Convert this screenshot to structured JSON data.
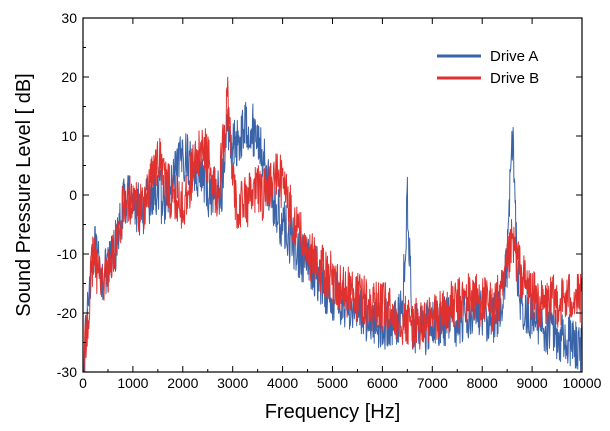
{
  "chart_data": {
    "type": "line",
    "title": "",
    "xlabel": "Frequency [Hz]",
    "ylabel": "Sound Pressure Level [ dB]",
    "xlim": [
      0,
      10000
    ],
    "ylim": [
      -30,
      30
    ],
    "x_ticks": [
      0,
      1000,
      2000,
      3000,
      4000,
      5000,
      6000,
      7000,
      8000,
      9000,
      10000
    ],
    "x_tick_labels": [
      "0",
      "1000",
      "2000",
      "3000",
      "4000",
      "5000",
      "6000",
      "7000",
      "8000",
      "9000",
      "10000"
    ],
    "y_ticks": [
      -30,
      -20,
      -10,
      0,
      10,
      20,
      30
    ],
    "y_tick_labels": [
      "-30",
      "-20",
      "-10",
      "0",
      "10",
      "20",
      "30"
    ],
    "grid": false,
    "legend_position": "top-right",
    "series": [
      {
        "name": "Drive A",
        "color": "#3a63a8",
        "x": [
          20,
          100,
          200,
          300,
          400,
          500,
          600,
          700,
          800,
          900,
          1000,
          1100,
          1200,
          1300,
          1400,
          1500,
          1600,
          1700,
          1800,
          1900,
          2000,
          2100,
          2200,
          2300,
          2400,
          2500,
          2600,
          2700,
          2800,
          2900,
          3000,
          3100,
          3200,
          3300,
          3400,
          3500,
          3600,
          3700,
          3800,
          3900,
          4000,
          4200,
          4400,
          4600,
          4800,
          5000,
          5200,
          5400,
          5600,
          5800,
          6000,
          6200,
          6400,
          6500,
          6600,
          6800,
          7000,
          7200,
          7400,
          7600,
          7800,
          8000,
          8200,
          8400,
          8500,
          8600,
          8650,
          8700,
          8800,
          9000,
          9200,
          9400,
          9600,
          9800,
          10000
        ],
        "y": [
          -29,
          -18,
          -8,
          -12,
          -14,
          -13,
          -10,
          -8,
          -2,
          0,
          -1,
          -2,
          -3,
          -1,
          0,
          1,
          -1,
          0,
          2,
          4,
          7,
          6,
          5,
          4,
          3,
          0,
          1,
          0,
          2,
          12,
          8,
          9,
          11,
          12,
          11,
          10,
          7,
          2,
          -1,
          -3,
          -5,
          -8,
          -11,
          -12,
          -15,
          -17,
          -18,
          -19,
          -20,
          -21,
          -22,
          -22,
          -20,
          0,
          -22,
          -23,
          -22,
          -21,
          -22,
          -21,
          -19,
          -20,
          -21,
          -18,
          -12,
          11,
          2,
          -13,
          -19,
          -21,
          -22,
          -23,
          -24,
          -25,
          -26
        ]
      },
      {
        "name": "Drive B",
        "color": "#e0312f",
        "x": [
          20,
          100,
          200,
          300,
          400,
          500,
          600,
          700,
          800,
          900,
          1000,
          1100,
          1200,
          1300,
          1400,
          1500,
          1600,
          1700,
          1800,
          1900,
          2000,
          2100,
          2200,
          2300,
          2400,
          2500,
          2600,
          2700,
          2800,
          2900,
          3000,
          3100,
          3200,
          3300,
          3400,
          3500,
          3600,
          3700,
          3800,
          3900,
          4000,
          4200,
          4400,
          4600,
          4800,
          5000,
          5200,
          5400,
          5600,
          5800,
          6000,
          6200,
          6400,
          6600,
          6800,
          7000,
          7200,
          7400,
          7600,
          7800,
          8000,
          8200,
          8400,
          8600,
          8800,
          9000,
          9200,
          9400,
          9600,
          9800,
          10000
        ],
        "y": [
          -29,
          -20,
          -10,
          -13,
          -14,
          -14,
          -10,
          -7,
          -2,
          0,
          -1,
          -2,
          -2,
          0,
          4,
          7,
          4,
          1,
          0,
          -1,
          -2,
          1,
          4,
          6,
          8,
          6,
          2,
          0,
          8,
          16,
          2,
          -2,
          -1,
          -1,
          0,
          1,
          0,
          1,
          2,
          3,
          2,
          -4,
          -8,
          -11,
          -13,
          -14,
          -16,
          -17,
          -18,
          -19,
          -19,
          -20,
          -21,
          -22,
          -22,
          -21,
          -20,
          -19,
          -18,
          -17,
          -18,
          -19,
          -17,
          -8,
          -14,
          -17,
          -19,
          -18,
          -18,
          -17,
          -18
        ]
      }
    ]
  }
}
